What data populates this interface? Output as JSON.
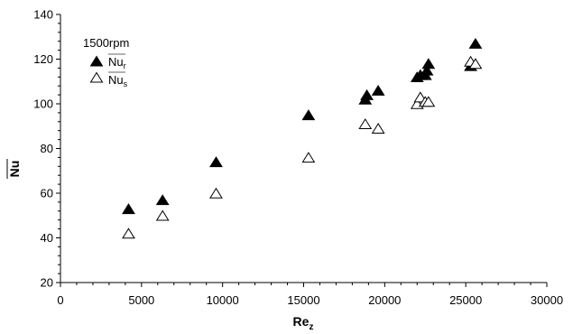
{
  "chart_data": {
    "type": "scatter",
    "title": "",
    "legend_title": "1500rpm",
    "legend_position": "top-left",
    "xlabel": {
      "base": "Re",
      "sub": "z"
    },
    "ylabel": "Nu",
    "xlim": [
      0,
      30000
    ],
    "ylim": [
      20,
      140
    ],
    "x_ticks": [
      0,
      5000,
      10000,
      15000,
      20000,
      25000,
      30000
    ],
    "y_ticks": [
      20,
      40,
      60,
      80,
      100,
      120,
      140
    ],
    "grid": false,
    "series": [
      {
        "name": "Nu_r",
        "label_base": "Nu",
        "label_sub": "r",
        "marker": "filled-triangle",
        "color": "#000000",
        "points": [
          [
            4200,
            53
          ],
          [
            6300,
            57
          ],
          [
            9600,
            74
          ],
          [
            15300,
            95
          ],
          [
            18800,
            102
          ],
          [
            18900,
            104
          ],
          [
            19600,
            106
          ],
          [
            22000,
            112
          ],
          [
            22200,
            113
          ],
          [
            22500,
            113
          ],
          [
            22600,
            115
          ],
          [
            22700,
            118
          ],
          [
            25300,
            117
          ],
          [
            25600,
            127
          ]
        ]
      },
      {
        "name": "Nu_s",
        "label_base": "Nu",
        "label_sub": "s",
        "marker": "open-triangle",
        "color": "#000000",
        "points": [
          [
            4200,
            42
          ],
          [
            6300,
            50
          ],
          [
            9600,
            60
          ],
          [
            15300,
            76
          ],
          [
            18800,
            91
          ],
          [
            19600,
            89
          ],
          [
            22000,
            100
          ],
          [
            22200,
            103
          ],
          [
            22500,
            101
          ],
          [
            22700,
            101
          ],
          [
            25300,
            119
          ],
          [
            25600,
            118
          ]
        ]
      }
    ]
  }
}
